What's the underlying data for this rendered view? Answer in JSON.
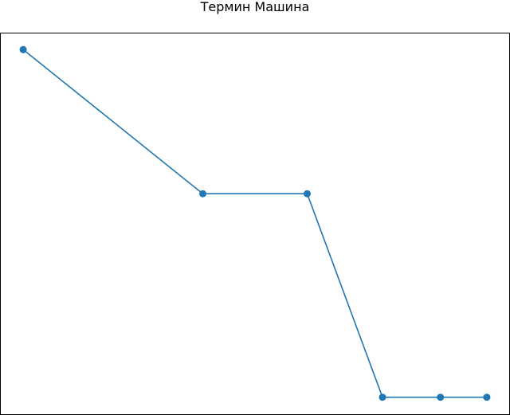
{
  "chart_data": {
    "type": "line",
    "title": "Термин Машина",
    "xlabel": "",
    "ylabel": "",
    "x": [
      0,
      3.1,
      4.9,
      6.2,
      7.2,
      8.0
    ],
    "series": [
      {
        "values": [
          9.2,
          5.8,
          5.8,
          1.0,
          1.0,
          1.0
        ]
      }
    ],
    "xlim": [
      -0.4,
      8.4
    ],
    "ylim": [
      0.6,
      9.6
    ],
    "grid": false,
    "markers": true,
    "colors": {
      "line": "#1f77b4",
      "marker": "#1f77b4",
      "axes": "#000000"
    }
  }
}
